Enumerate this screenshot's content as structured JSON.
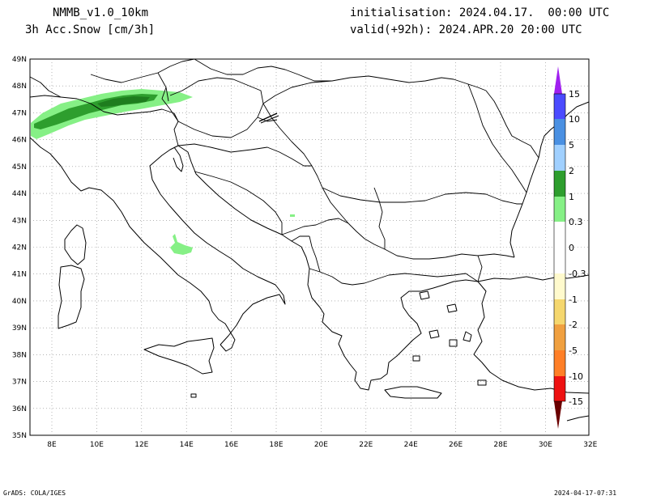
{
  "header": {
    "model": "NMMB_v1.0_10km",
    "variable": "3h Acc.Snow [cm/3h]",
    "init": "initialisation: 2024.04.17.  00:00 UTC",
    "valid": "valid(+92h): 2024.APR.20 20:00 UTC"
  },
  "axes": {
    "lon_labels": [
      "8E",
      "10E",
      "12E",
      "14E",
      "16E",
      "18E",
      "20E",
      "22E",
      "24E",
      "26E",
      "28E",
      "30E",
      "32E"
    ],
    "lat_labels": [
      "49N",
      "48N",
      "47N",
      "46N",
      "45N",
      "44N",
      "43N",
      "42N",
      "41N",
      "40N",
      "39N",
      "38N",
      "37N",
      "36N",
      "35N"
    ]
  },
  "colorbar": {
    "labels": [
      "15",
      "10",
      "5",
      "2",
      "1",
      "0.3",
      "0",
      "-0.3",
      "-1",
      "-2",
      "-5",
      "-10",
      "-15"
    ],
    "colors": {
      "c15": "#a020f0",
      "c10": "#4b4bff",
      "c5": "#4a90e2",
      "c2": "#a0d0ff",
      "c1": "#2e9e2e",
      "c03": "#86f086",
      "n03": "#fffacd",
      "n1": "#f5d76e",
      "n2": "#f0a040",
      "n5": "#ff7f27",
      "n10": "#ee1111",
      "n15": "#aa0000",
      "n15b": "#6b0000"
    }
  },
  "footer": {
    "left": "GrADS: COLA/IGES",
    "right": "2024-04-17-07:31"
  }
}
